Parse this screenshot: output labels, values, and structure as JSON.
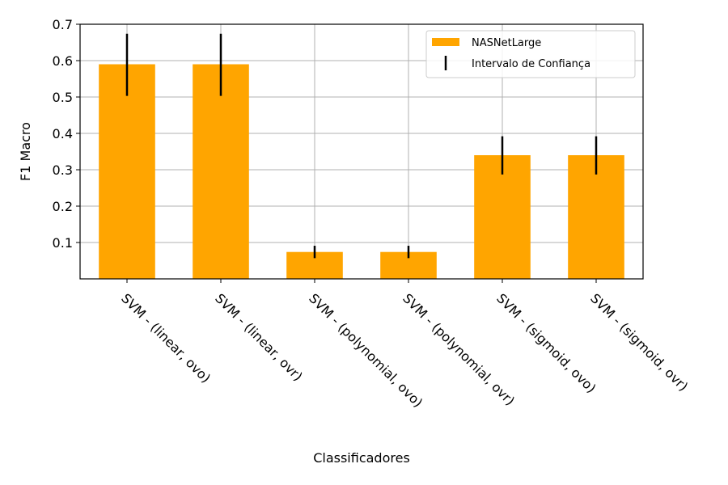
{
  "chart_data": {
    "type": "bar",
    "title": "",
    "xlabel": "Classificadores",
    "ylabel": "F1 Macro",
    "categories": [
      "SVM - (linear, ovo)",
      "SVM - (linear, ovr)",
      "SVM - (polynomial, ovo)",
      "SVM - (polynomial, ovr)",
      "SVM - (sigmoid, ovo)",
      "SVM - (sigmoid, ovr)"
    ],
    "series": [
      {
        "name": "NASNetLarge",
        "color": "#FFA500",
        "values": [
          0.59,
          0.59,
          0.074,
          0.074,
          0.34,
          0.34
        ],
        "ci_lower": [
          0.503,
          0.503,
          0.057,
          0.057,
          0.287,
          0.287
        ],
        "ci_upper": [
          0.674,
          0.674,
          0.091,
          0.091,
          0.392,
          0.392
        ]
      }
    ],
    "error_legend_label": "Intervalo de Confiança",
    "error_color": "#000000",
    "ylim": [
      0,
      0.7
    ],
    "yticks": [
      "0.1",
      "0.2",
      "0.3",
      "0.4",
      "0.5",
      "0.6",
      "0.7"
    ],
    "grid": true,
    "legend_position": "top-right",
    "xtick_rotation": -45
  }
}
